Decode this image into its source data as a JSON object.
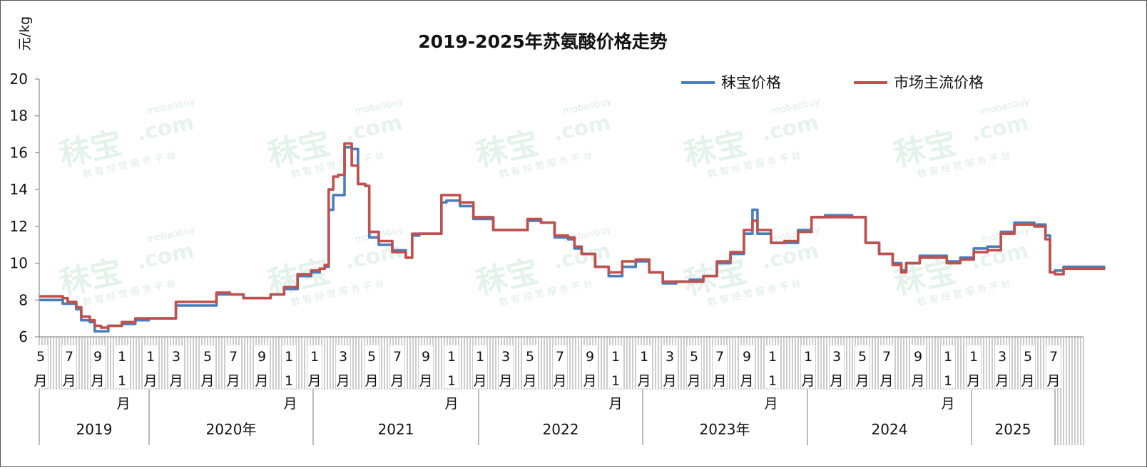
{
  "chart_data": {
    "type": "line",
    "title": "2019-2025年苏氨酸价格走势",
    "ylabel": "元/kg",
    "ylim": [
      6,
      20
    ],
    "yticks": [
      "6",
      "8",
      "10",
      "12",
      "14",
      "16",
      "18",
      "20"
    ],
    "grid": false,
    "legend_position": "top-right",
    "watermark": {
      "main": "秣宝",
      "domain": "mobaobuy",
      "com": ".com",
      "sub": "数 智 经 营 服 务 平 台"
    },
    "x_ticks": [
      {
        "m": "5",
        "u": "月"
      },
      {
        "m": "7",
        "u": "月"
      },
      {
        "m": "9",
        "u": "月"
      },
      {
        "m": "1",
        "u": "1"
      },
      {
        "m": "1",
        "u": "月"
      },
      {
        "m": "3",
        "u": "月"
      },
      {
        "m": "5",
        "u": "月"
      },
      {
        "m": "7",
        "u": "月"
      },
      {
        "m": "9",
        "u": "月"
      },
      {
        "m": "1",
        "u": "1"
      },
      {
        "m": "1",
        "u": "月"
      },
      {
        "m": "3",
        "u": "月"
      },
      {
        "m": "5",
        "u": "月"
      },
      {
        "m": "7",
        "u": "月"
      },
      {
        "m": "9",
        "u": "月"
      },
      {
        "m": "1",
        "u": "1"
      },
      {
        "m": "1",
        "u": "月"
      },
      {
        "m": "3",
        "u": "月"
      },
      {
        "m": "5",
        "u": "月"
      },
      {
        "m": "7",
        "u": "月"
      },
      {
        "m": "9",
        "u": "月"
      },
      {
        "m": "1",
        "u": "1"
      },
      {
        "m": "1",
        "u": "月"
      },
      {
        "m": "3",
        "u": "月"
      },
      {
        "m": "5",
        "u": "月"
      },
      {
        "m": "7",
        "u": "月"
      },
      {
        "m": "9",
        "u": "月"
      },
      {
        "m": "1",
        "u": "1"
      },
      {
        "m": "1",
        "u": "月"
      },
      {
        "m": "3",
        "u": "月"
      },
      {
        "m": "5",
        "u": "月"
      },
      {
        "m": "7",
        "u": "月"
      },
      {
        "m": "9",
        "u": "月"
      },
      {
        "m": "1",
        "u": "1"
      },
      {
        "m": "1",
        "u": "月"
      },
      {
        "m": "3",
        "u": "月"
      },
      {
        "m": "5",
        "u": "月"
      },
      {
        "m": "7",
        "u": "月"
      }
    ],
    "nov_month_labels": [
      "月",
      "月",
      "月",
      "月",
      "月",
      "月"
    ],
    "years": [
      "2019",
      "2020年",
      "2021",
      "2022",
      "2023年",
      "2024",
      "2025"
    ],
    "x_start": "2019-05",
    "x_end": "2025-08",
    "series": [
      {
        "name": "秣宝价格",
        "color": "#4a7ebb",
        "points": [
          [
            "2019-05",
            8.0
          ],
          [
            "2019-06",
            8.0
          ],
          [
            "2019-06-20",
            7.8
          ],
          [
            "2019-07",
            7.8
          ],
          [
            "2019-07-20",
            7.5
          ],
          [
            "2019-08",
            6.9
          ],
          [
            "2019-08-20",
            6.8
          ],
          [
            "2019-09",
            6.3
          ],
          [
            "2019-09-15",
            6.3
          ],
          [
            "2019-10",
            6.6
          ],
          [
            "2019-11",
            6.7
          ],
          [
            "2019-12",
            6.9
          ],
          [
            "2020-01",
            7.0
          ],
          [
            "2020-02",
            7.0
          ],
          [
            "2020-03",
            7.7
          ],
          [
            "2020-04",
            7.7
          ],
          [
            "2020-05",
            7.7
          ],
          [
            "2020-06",
            8.3
          ],
          [
            "2020-07",
            8.3
          ],
          [
            "2020-08",
            8.1
          ],
          [
            "2020-09",
            8.1
          ],
          [
            "2020-10",
            8.3
          ],
          [
            "2020-11",
            8.6
          ],
          [
            "2020-12",
            9.3
          ],
          [
            "2021-01",
            9.5
          ],
          [
            "2021-01-20",
            9.7
          ],
          [
            "2021-02",
            9.8
          ],
          [
            "2021-02-10",
            12.9
          ],
          [
            "2021-02-20",
            13.7
          ],
          [
            "2021-03",
            13.7
          ],
          [
            "2021-03-15",
            16.3
          ],
          [
            "2021-03-25",
            16.3
          ],
          [
            "2021-04",
            16.2
          ],
          [
            "2021-04-15",
            14.3
          ],
          [
            "2021-05",
            14.2
          ],
          [
            "2021-05-10",
            11.4
          ],
          [
            "2021-06",
            11.0
          ],
          [
            "2021-07",
            10.7
          ],
          [
            "2021-08",
            10.3
          ],
          [
            "2021-08-15",
            11.5
          ],
          [
            "2021-09",
            11.6
          ],
          [
            "2021-10",
            11.6
          ],
          [
            "2021-10-20",
            13.3
          ],
          [
            "2021-11",
            13.4
          ],
          [
            "2021-12",
            13.1
          ],
          [
            "2022-01",
            12.4
          ],
          [
            "2022-02",
            12.4
          ],
          [
            "2022-02-15",
            11.8
          ],
          [
            "2022-03",
            11.8
          ],
          [
            "2022-04",
            11.8
          ],
          [
            "2022-05",
            12.3
          ],
          [
            "2022-06",
            12.2
          ],
          [
            "2022-07",
            11.4
          ],
          [
            "2022-08",
            11.3
          ],
          [
            "2022-08-15",
            10.8
          ],
          [
            "2022-09",
            10.5
          ],
          [
            "2022-10",
            9.8
          ],
          [
            "2022-11",
            9.3
          ],
          [
            "2022-12",
            9.8
          ],
          [
            "2023-01",
            10.1
          ],
          [
            "2023-02",
            9.5
          ],
          [
            "2023-03",
            8.9
          ],
          [
            "2023-04",
            9.0
          ],
          [
            "2023-05",
            9.1
          ],
          [
            "2023-06",
            9.3
          ],
          [
            "2023-07",
            10.0
          ],
          [
            "2023-08",
            10.5
          ],
          [
            "2023-09",
            11.6
          ],
          [
            "2023-09-20",
            12.9
          ],
          [
            "2023-10",
            11.6
          ],
          [
            "2023-11",
            11.1
          ],
          [
            "2023-12",
            11.1
          ],
          [
            "2024-01",
            11.8
          ],
          [
            "2024-02",
            12.5
          ],
          [
            "2024-03",
            12.6
          ],
          [
            "2024-04",
            12.6
          ],
          [
            "2024-05",
            12.5
          ],
          [
            "2024-06",
            11.1
          ],
          [
            "2024-07",
            10.5
          ],
          [
            "2024-08",
            10.0
          ],
          [
            "2024-08-20",
            9.6
          ],
          [
            "2024-09",
            10.0
          ],
          [
            "2024-10",
            10.4
          ],
          [
            "2024-11",
            10.4
          ],
          [
            "2024-12",
            10.1
          ],
          [
            "2025-01",
            10.3
          ],
          [
            "2025-02",
            10.8
          ],
          [
            "2025-03",
            10.9
          ],
          [
            "2025-04",
            11.7
          ],
          [
            "2025-05",
            12.2
          ],
          [
            "2025-06",
            12.2
          ],
          [
            "2025-06-15",
            12.1
          ],
          [
            "2025-07",
            12.1
          ],
          [
            "2025-07-10",
            11.5
          ],
          [
            "2025-07-20",
            9.5
          ],
          [
            "2025-08",
            9.6
          ],
          [
            "2025-08-20",
            9.8
          ],
          [
            "2025-09",
            9.8
          ],
          [
            "2025-10",
            9.8
          ],
          [
            "2025-11",
            9.8
          ],
          [
            "2025-11-20",
            9.8
          ]
        ]
      },
      {
        "name": "市场主流价格",
        "color": "#c0504d",
        "points": [
          [
            "2019-05",
            8.2
          ],
          [
            "2019-06",
            8.2
          ],
          [
            "2019-06-20",
            8.1
          ],
          [
            "2019-07",
            7.9
          ],
          [
            "2019-07-20",
            7.6
          ],
          [
            "2019-08",
            7.1
          ],
          [
            "2019-08-20",
            6.9
          ],
          [
            "2019-09",
            6.6
          ],
          [
            "2019-09-15",
            6.5
          ],
          [
            "2019-10",
            6.6
          ],
          [
            "2019-11",
            6.8
          ],
          [
            "2019-12",
            7.0
          ],
          [
            "2020-01",
            7.0
          ],
          [
            "2020-02",
            7.0
          ],
          [
            "2020-03",
            7.9
          ],
          [
            "2020-04",
            7.9
          ],
          [
            "2020-05",
            7.9
          ],
          [
            "2020-06",
            8.4
          ],
          [
            "2020-07",
            8.3
          ],
          [
            "2020-08",
            8.1
          ],
          [
            "2020-09",
            8.1
          ],
          [
            "2020-10",
            8.3
          ],
          [
            "2020-11",
            8.7
          ],
          [
            "2020-12",
            9.4
          ],
          [
            "2021-01",
            9.6
          ],
          [
            "2021-01-20",
            9.7
          ],
          [
            "2021-02",
            9.9
          ],
          [
            "2021-02-10",
            14.0
          ],
          [
            "2021-02-20",
            14.7
          ],
          [
            "2021-03",
            14.8
          ],
          [
            "2021-03-15",
            16.5
          ],
          [
            "2021-03-25",
            16.5
          ],
          [
            "2021-04",
            15.3
          ],
          [
            "2021-04-15",
            14.3
          ],
          [
            "2021-05",
            14.2
          ],
          [
            "2021-05-10",
            11.7
          ],
          [
            "2021-06",
            11.2
          ],
          [
            "2021-07",
            10.6
          ],
          [
            "2021-08",
            10.3
          ],
          [
            "2021-08-15",
            11.6
          ],
          [
            "2021-09",
            11.6
          ],
          [
            "2021-10",
            11.6
          ],
          [
            "2021-10-20",
            13.7
          ],
          [
            "2021-11",
            13.7
          ],
          [
            "2021-12",
            13.3
          ],
          [
            "2022-01",
            12.5
          ],
          [
            "2022-02",
            12.5
          ],
          [
            "2022-02-15",
            11.8
          ],
          [
            "2022-03",
            11.8
          ],
          [
            "2022-04",
            11.8
          ],
          [
            "2022-05",
            12.4
          ],
          [
            "2022-06",
            12.2
          ],
          [
            "2022-07",
            11.5
          ],
          [
            "2022-08",
            11.4
          ],
          [
            "2022-08-15",
            10.9
          ],
          [
            "2022-09",
            10.5
          ],
          [
            "2022-10",
            9.8
          ],
          [
            "2022-11",
            9.5
          ],
          [
            "2022-12",
            10.1
          ],
          [
            "2023-01",
            10.2
          ],
          [
            "2023-02",
            9.5
          ],
          [
            "2023-03",
            9.0
          ],
          [
            "2023-04",
            9.0
          ],
          [
            "2023-05",
            9.0
          ],
          [
            "2023-06",
            9.3
          ],
          [
            "2023-07",
            10.1
          ],
          [
            "2023-08",
            10.6
          ],
          [
            "2023-09",
            11.8
          ],
          [
            "2023-09-20",
            12.3
          ],
          [
            "2023-10",
            11.8
          ],
          [
            "2023-11",
            11.1
          ],
          [
            "2023-12",
            11.2
          ],
          [
            "2024-01",
            11.7
          ],
          [
            "2024-02",
            12.5
          ],
          [
            "2024-03",
            12.5
          ],
          [
            "2024-04",
            12.5
          ],
          [
            "2024-05",
            12.5
          ],
          [
            "2024-06",
            11.1
          ],
          [
            "2024-07",
            10.5
          ],
          [
            "2024-08",
            9.9
          ],
          [
            "2024-08-20",
            9.5
          ],
          [
            "2024-09",
            10.0
          ],
          [
            "2024-10",
            10.3
          ],
          [
            "2024-11",
            10.3
          ],
          [
            "2024-12",
            10.0
          ],
          [
            "2025-01",
            10.2
          ],
          [
            "2025-02",
            10.6
          ],
          [
            "2025-03",
            10.7
          ],
          [
            "2025-04",
            11.6
          ],
          [
            "2025-05",
            12.1
          ],
          [
            "2025-06",
            12.1
          ],
          [
            "2025-06-15",
            12.0
          ],
          [
            "2025-07",
            12.0
          ],
          [
            "2025-07-10",
            11.3
          ],
          [
            "2025-07-20",
            9.5
          ],
          [
            "2025-08",
            9.4
          ],
          [
            "2025-08-20",
            9.7
          ],
          [
            "2025-09",
            9.7
          ],
          [
            "2025-10",
            9.7
          ],
          [
            "2025-11",
            9.7
          ],
          [
            "2025-11-20",
            9.7
          ]
        ]
      }
    ]
  }
}
